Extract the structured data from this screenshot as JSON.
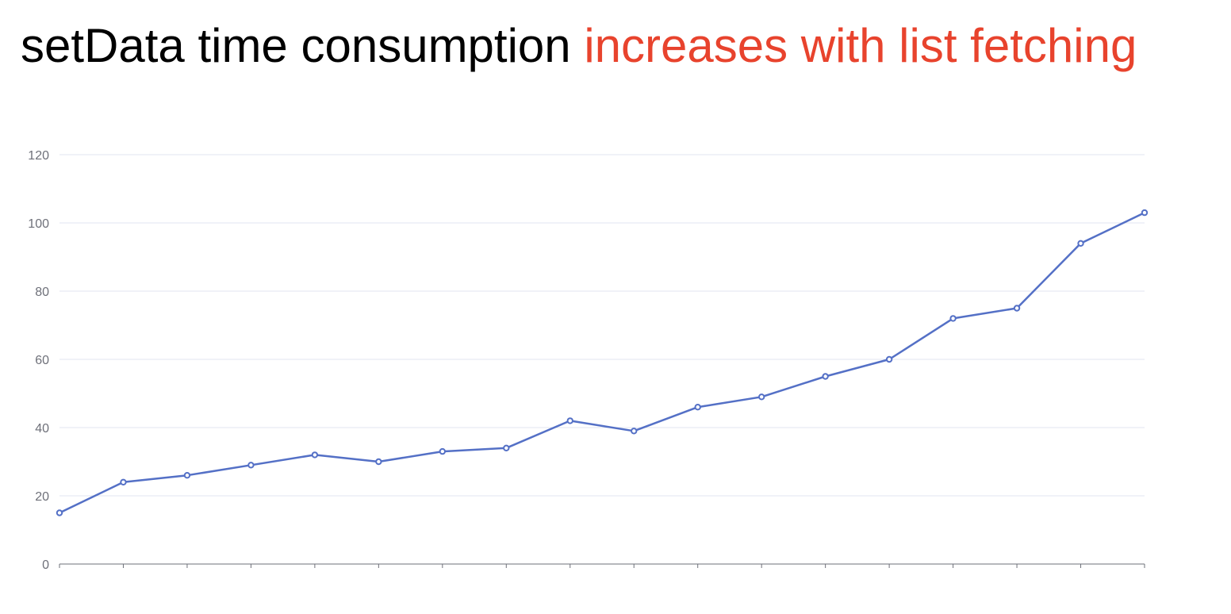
{
  "title": {
    "prefix": "setData time consumption",
    "highlight": "increases with list fetching"
  },
  "colors": {
    "series": "#5470c6",
    "highlight": "#e8432d",
    "grid": "#e0e6f1",
    "axis": "#6e7079"
  },
  "chart_data": {
    "type": "line",
    "title": "setData time consumption increases with list fetching",
    "xlabel": "",
    "ylabel": "",
    "ylim": [
      0,
      120
    ],
    "yticks": [
      0,
      20,
      40,
      60,
      80,
      100,
      120
    ],
    "grid": "horizontal",
    "series": [
      {
        "values": [
          15,
          24,
          26,
          29,
          32,
          30,
          33,
          34,
          42,
          39,
          46,
          49,
          55,
          60,
          72,
          75,
          94,
          103
        ]
      }
    ]
  }
}
